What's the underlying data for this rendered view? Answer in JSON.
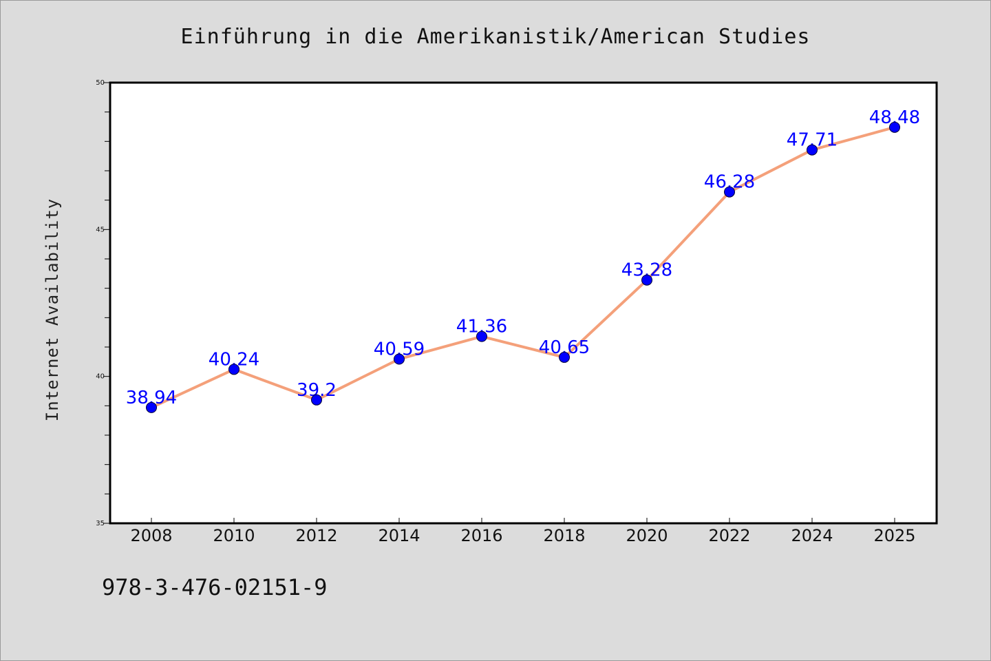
{
  "chart_data": {
    "type": "line",
    "title": "Einführung in die Amerikanistik/American Studies",
    "xlabel": "",
    "ylabel": "Internet Availability",
    "categories": [
      "2008",
      "2010",
      "2012",
      "2014",
      "2016",
      "2018",
      "2020",
      "2022",
      "2024",
      "2025"
    ],
    "series": [
      {
        "values": [
          38.94,
          40.24,
          39.2,
          40.59,
          41.36,
          40.65,
          43.28,
          46.28,
          47.71,
          48.48
        ]
      }
    ],
    "data_labels": [
      "38.94",
      "40.24",
      "39.2",
      "40.59",
      "41.36",
      "40.65",
      "43.28",
      "46.28",
      "47.71",
      "48.48"
    ],
    "ylim": [
      35,
      50
    ],
    "yticks": [
      "35",
      "40",
      "45",
      "50"
    ],
    "grid": false,
    "line_color": "#f4a07a",
    "marker_color": "#0000ff",
    "label_color": "#0000ff",
    "background_color": "#dcdcdc"
  },
  "footer": {
    "isbn": "978-3-476-02151-9"
  }
}
